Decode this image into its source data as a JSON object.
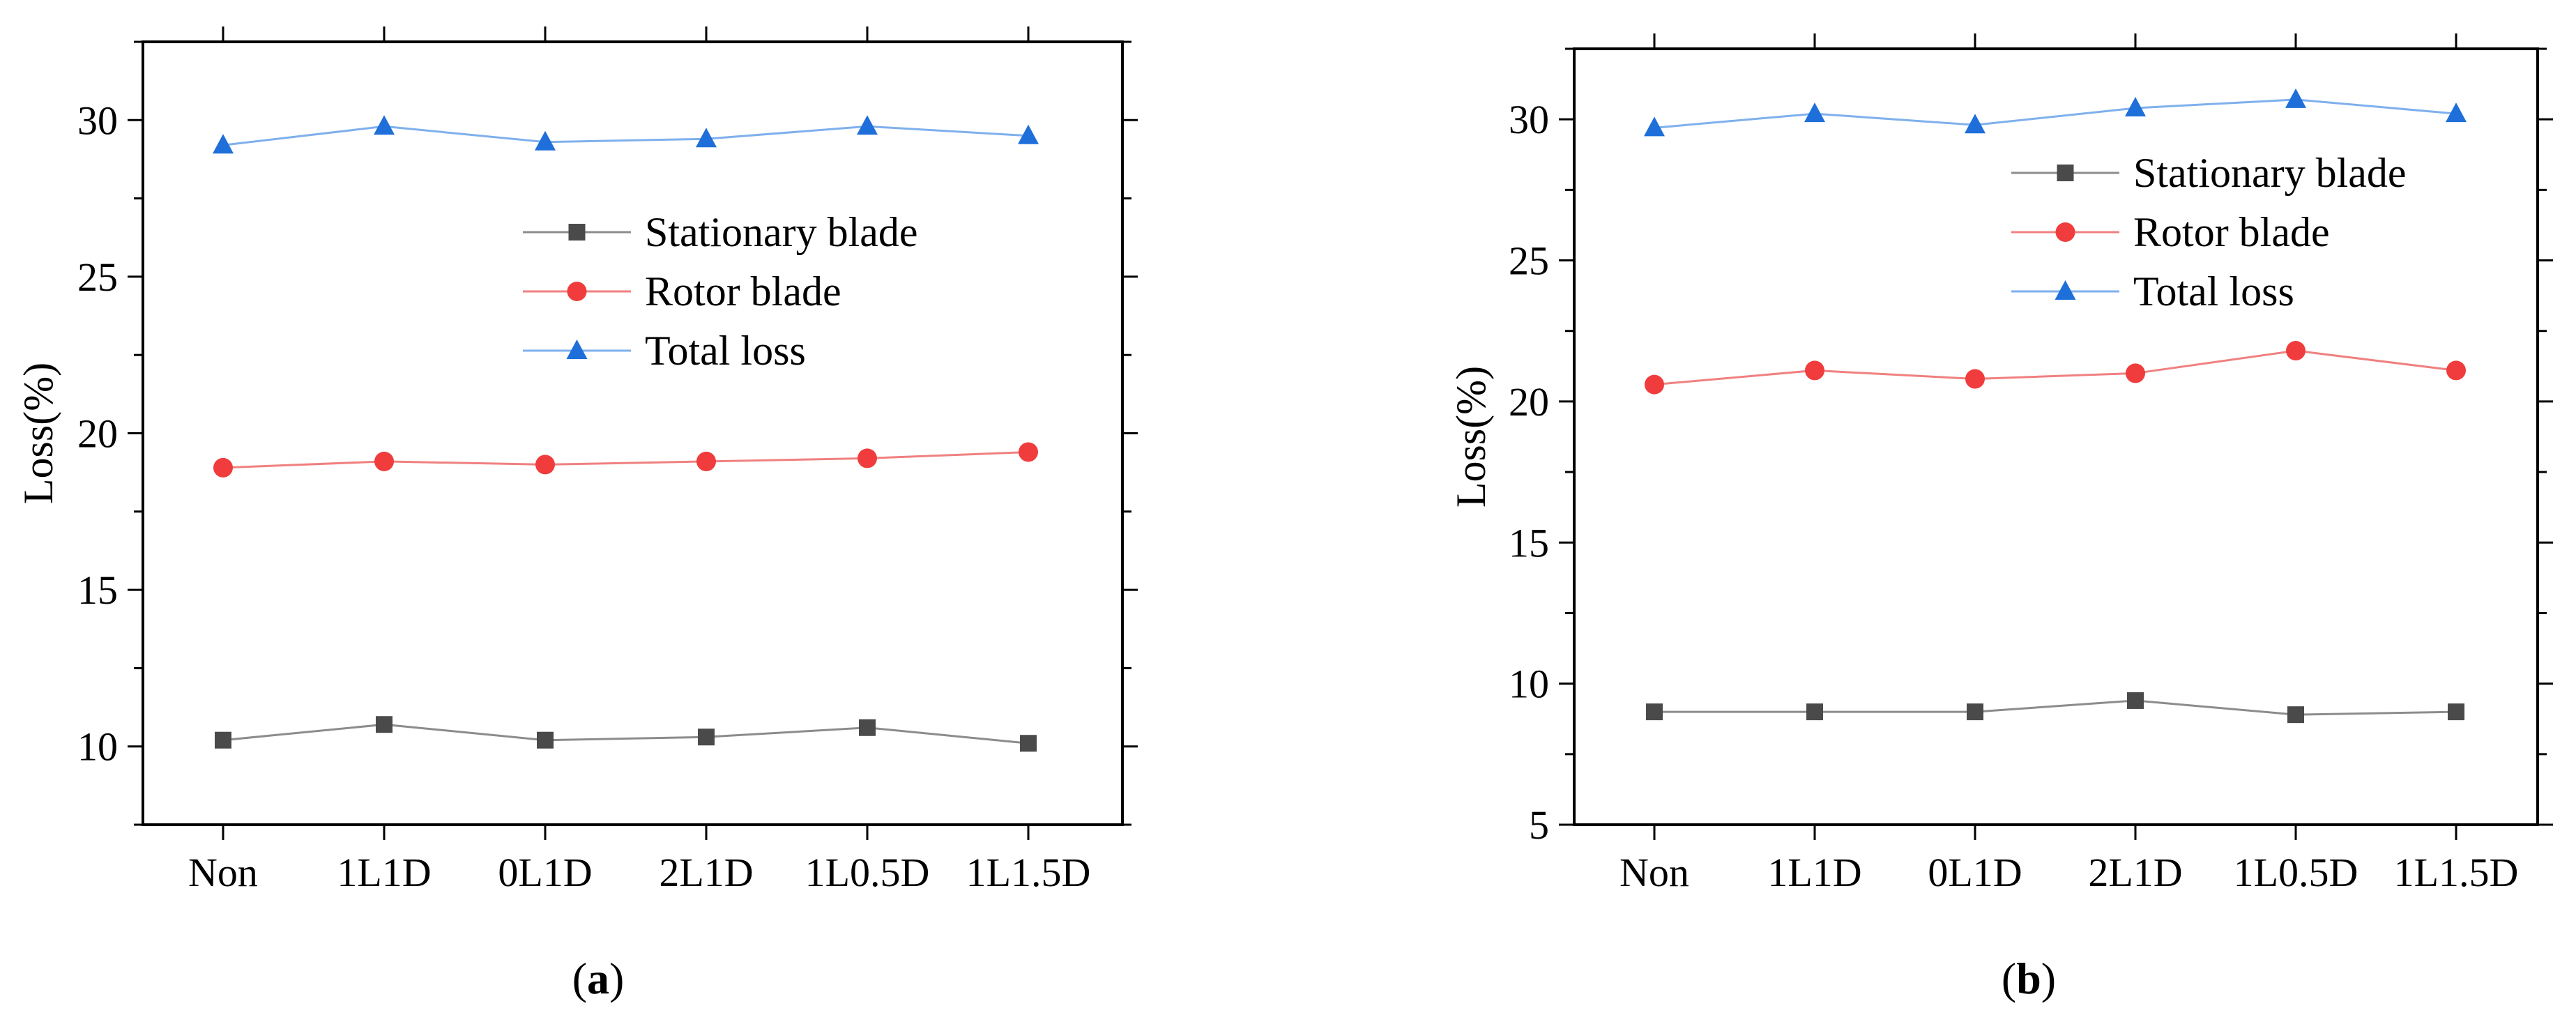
{
  "chart_data": [
    {
      "type": "line",
      "panel": "a",
      "caption": "(a)",
      "caption_open": "(",
      "caption_letter": "a",
      "caption_close": ")",
      "categories": [
        "Non",
        "1L1D",
        "0L1D",
        "2L1D",
        "1L0.5D",
        "1L1.5D"
      ],
      "ylabel": "Loss(%)",
      "xlabel": "",
      "ylim": [
        7.5,
        32.5
      ],
      "yticks": [
        10,
        15,
        20,
        25,
        30
      ],
      "legend_position": "upper-middle-right",
      "series": [
        {
          "name": "Stationary blade",
          "marker": "square",
          "color": "#4a4a4a",
          "line_color": "#8c8c8c",
          "values": [
            10.2,
            10.7,
            10.2,
            10.3,
            10.6,
            10.1
          ]
        },
        {
          "name": "Rotor blade",
          "marker": "circle",
          "color": "#f03c3c",
          "line_color": "#f08080",
          "values": [
            18.9,
            19.1,
            19.0,
            19.1,
            19.2,
            19.4
          ]
        },
        {
          "name": "Total loss",
          "marker": "triangle",
          "color": "#1e6fd9",
          "line_color": "#7fb0ec",
          "values": [
            29.2,
            29.8,
            29.3,
            29.4,
            29.8,
            29.5
          ]
        }
      ]
    },
    {
      "type": "line",
      "panel": "b",
      "caption": "(b)",
      "caption_open": "(",
      "caption_letter": "b",
      "caption_close": ")",
      "categories": [
        "Non",
        "1L1D",
        "0L1D",
        "2L1D",
        "1L0.5D",
        "1L1.5D"
      ],
      "ylabel": "Loss(%)",
      "xlabel": "",
      "ylim": [
        5,
        32.5
      ],
      "yticks": [
        5,
        10,
        15,
        20,
        25,
        30
      ],
      "legend_position": "upper-middle-right",
      "series": [
        {
          "name": "Stationary blade",
          "marker": "square",
          "color": "#4a4a4a",
          "line_color": "#8c8c8c",
          "values": [
            9.0,
            9.0,
            9.0,
            9.4,
            8.9,
            9.0
          ]
        },
        {
          "name": "Rotor blade",
          "marker": "circle",
          "color": "#f03c3c",
          "line_color": "#f08080",
          "values": [
            20.6,
            21.1,
            20.8,
            21.0,
            21.8,
            21.1
          ]
        },
        {
          "name": "Total loss",
          "marker": "triangle",
          "color": "#1e6fd9",
          "line_color": "#7fb0ec",
          "values": [
            29.7,
            30.2,
            29.8,
            30.4,
            30.7,
            30.2
          ]
        }
      ]
    }
  ]
}
